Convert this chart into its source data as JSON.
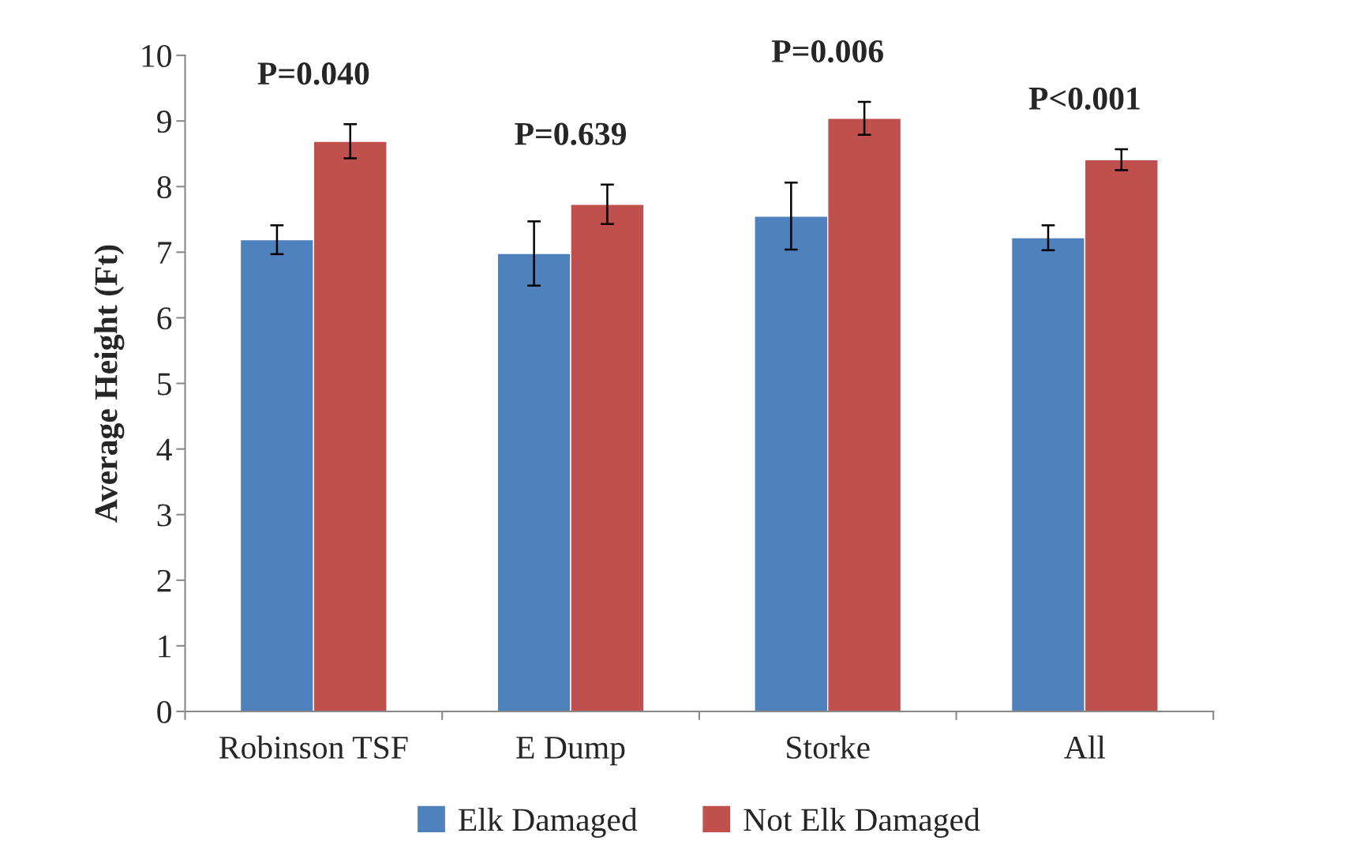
{
  "chart_data": {
    "type": "bar",
    "ylabel": "Average Height (Ft)",
    "categories": [
      "Robinson TSF",
      "E Dump",
      "Storke",
      "All"
    ],
    "series": [
      {
        "name": "Elk Damaged",
        "color": "#4f81bd",
        "values": [
          7.19,
          6.98,
          7.55,
          7.22
        ],
        "errors": [
          0.22,
          0.49,
          0.51,
          0.19
        ]
      },
      {
        "name": "Not Elk Damaged",
        "color": "#c0504d",
        "values": [
          8.69,
          7.73,
          9.04,
          8.41
        ],
        "errors": [
          0.26,
          0.3,
          0.25,
          0.16
        ]
      }
    ],
    "ylim": [
      0,
      10
    ],
    "yticks": [
      0,
      1,
      2,
      3,
      4,
      5,
      6,
      7,
      8,
      9,
      10
    ],
    "grid": false,
    "legend": "bottom",
    "annotations": [
      "P=0.040",
      "P=0.639",
      "P=0.006",
      "P<0.001"
    ]
  }
}
